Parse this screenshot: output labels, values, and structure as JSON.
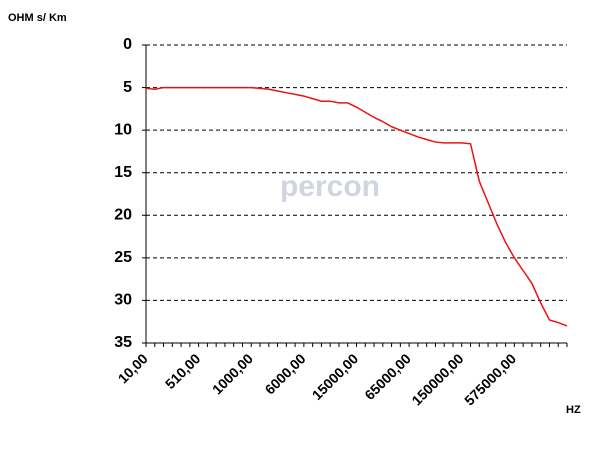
{
  "chart_data": {
    "type": "line",
    "y_label": "OHM s/ Km",
    "x_label": "HZ",
    "watermark": "percon",
    "categories": [
      "10,00",
      null,
      null,
      null,
      null,
      null,
      "510,00",
      null,
      null,
      null,
      null,
      null,
      "1000,00",
      null,
      null,
      null,
      null,
      null,
      "6000,00",
      null,
      null,
      null,
      null,
      null,
      "15000,00",
      null,
      null,
      null,
      null,
      null,
      "65000,00",
      null,
      null,
      null,
      null,
      null,
      "150000,00",
      null,
      null,
      null,
      null,
      null,
      "575000,00",
      null,
      null,
      null,
      null,
      null,
      null
    ],
    "series": [
      {
        "name": "OHM s/ Km",
        "color": "#ee1111",
        "values": [
          5.1,
          5.2,
          5.0,
          5.0,
          5.0,
          5.0,
          5.0,
          5.0,
          5.0,
          5.0,
          5.0,
          5.0,
          5.0,
          5.1,
          5.2,
          5.4,
          5.6,
          5.8,
          6.0,
          6.3,
          6.6,
          6.6,
          6.8,
          6.8,
          7.3,
          7.9,
          8.5,
          9.0,
          9.6,
          10.0,
          10.4,
          10.8,
          11.1,
          11.4,
          11.5,
          11.5,
          11.5,
          11.6,
          16.0,
          18.5,
          21.0,
          23.2,
          25.0,
          26.5,
          28.0,
          30.3,
          32.3,
          32.6,
          33.0
        ]
      }
    ],
    "ylim": [
      0,
      35
    ],
    "yticks": [
      0,
      5,
      10,
      15,
      20,
      25,
      30,
      35
    ],
    "y_inverted": true,
    "grid": true
  }
}
